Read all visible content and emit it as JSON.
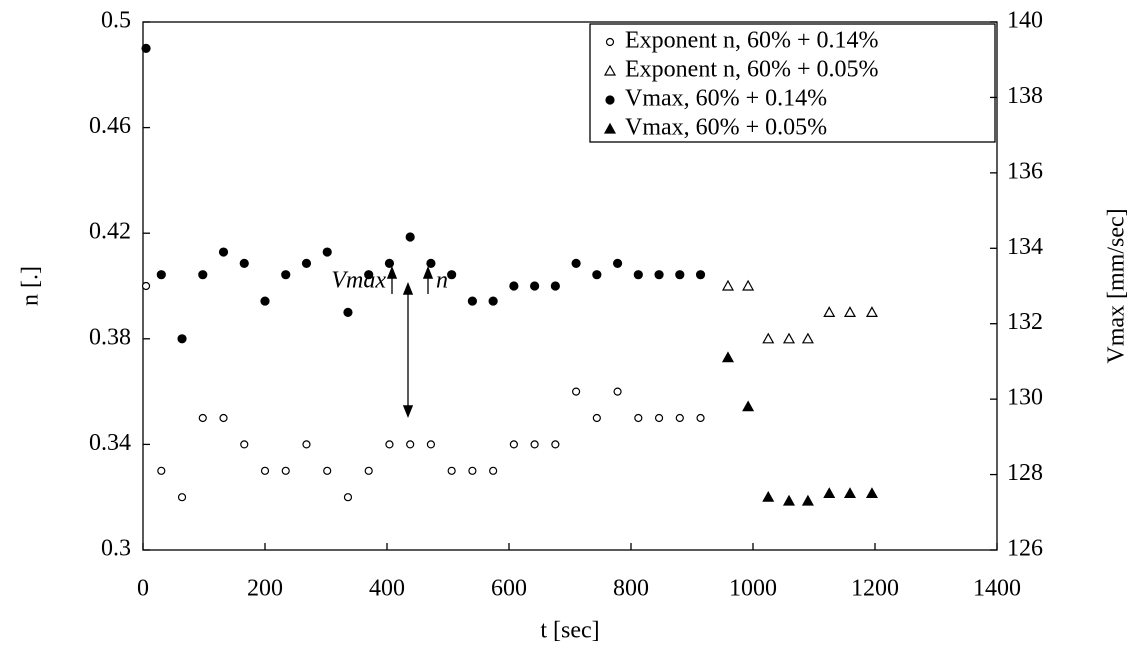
{
  "chart_data": {
    "type": "scatter",
    "xlabel": "t [sec]",
    "ylabel": "n [.]",
    "y2label": "Vmax [mm/sec]",
    "xlim": [
      0,
      1400
    ],
    "xticks": [
      0,
      200,
      400,
      600,
      800,
      1000,
      1200,
      1400
    ],
    "ylim": [
      0.3,
      0.5
    ],
    "yticks": [
      0.3,
      0.34,
      0.38,
      0.42,
      0.46,
      0.5
    ],
    "y2lim": [
      126,
      140
    ],
    "y2ticks": [
      126,
      128,
      130,
      132,
      134,
      136,
      138,
      140
    ],
    "legend": "upper right",
    "grid": false,
    "annotations": [
      "Vmax",
      "n"
    ],
    "series": [
      {
        "name": "Exponent n, 60% + 0.14%",
        "marker": "circle-open",
        "color": "#000000",
        "axis": "y",
        "x": [
          5,
          30,
          64,
          98,
          132,
          166,
          200,
          234,
          268,
          302,
          336,
          370,
          404,
          438,
          472,
          506,
          540,
          574,
          608,
          642,
          676,
          710,
          744,
          778,
          812,
          846,
          880,
          914
        ],
        "values": [
          0.4,
          0.33,
          0.32,
          0.35,
          0.35,
          0.34,
          0.33,
          0.33,
          0.34,
          0.33,
          0.32,
          0.33,
          0.34,
          0.34,
          0.34,
          0.33,
          0.33,
          0.33,
          0.34,
          0.34,
          0.34,
          0.36,
          0.35,
          0.36,
          0.35,
          0.35,
          0.35,
          0.35
        ]
      },
      {
        "name": "Exponent n, 60% + 0.05%",
        "marker": "triangle-open",
        "color": "#000000",
        "axis": "y",
        "x": [
          959,
          992,
          1025,
          1059,
          1090,
          1125,
          1159,
          1195
        ],
        "values": [
          0.4,
          0.4,
          0.38,
          0.38,
          0.38,
          0.39,
          0.39,
          0.39
        ]
      },
      {
        "name": "Vmax, 60% + 0.14%",
        "marker": "circle-filled",
        "color": "#000000",
        "axis": "y2",
        "x": [
          5,
          30,
          64,
          98,
          132,
          166,
          200,
          234,
          268,
          302,
          336,
          370,
          404,
          438,
          472,
          506,
          540,
          574,
          608,
          642,
          676,
          710,
          744,
          778,
          812,
          846,
          880,
          914
        ],
        "values": [
          139.3,
          133.3,
          131.6,
          133.3,
          133.9,
          133.6,
          132.6,
          133.3,
          133.6,
          133.9,
          132.3,
          133.3,
          133.6,
          134.3,
          133.6,
          133.3,
          132.6,
          132.6,
          133.0,
          133.0,
          133.0,
          133.6,
          133.3,
          133.6,
          133.3,
          133.3,
          133.3,
          133.3
        ]
      },
      {
        "name": "Vmax, 60% + 0.05%",
        "marker": "triangle-filled",
        "color": "#000000",
        "axis": "y2",
        "x": [
          959,
          992,
          1025,
          1059,
          1090,
          1125,
          1159,
          1195
        ],
        "values": [
          131.1,
          129.8,
          127.4,
          127.3,
          127.3,
          127.5,
          127.5,
          127.5
        ]
      }
    ]
  }
}
